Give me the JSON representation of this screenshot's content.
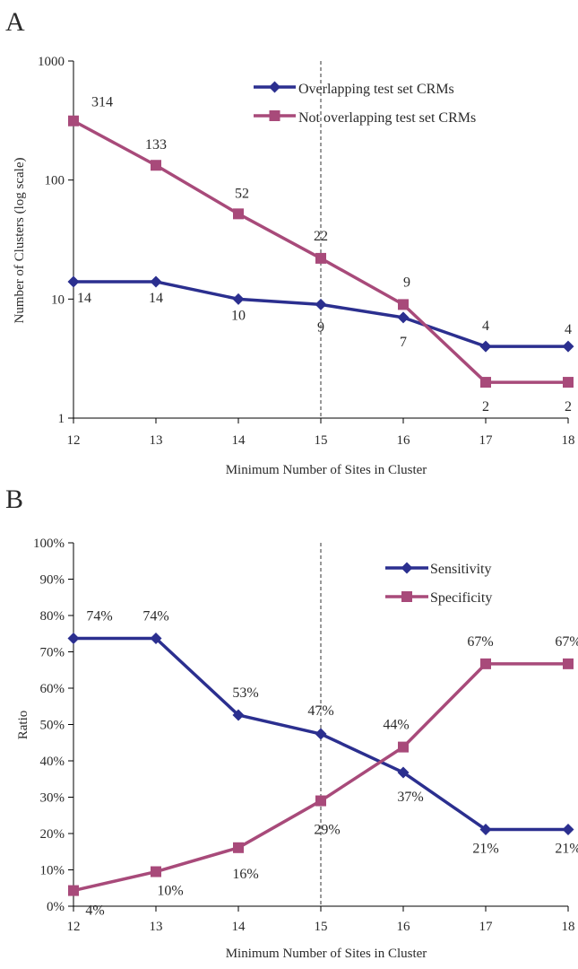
{
  "chart_data": [
    {
      "panel_label": "A",
      "type": "line",
      "xlabel": "Minimum Number of Sites in Cluster",
      "ylabel": "Number of Clusters (log scale)",
      "x": [
        12,
        13,
        14,
        15,
        16,
        17,
        18
      ],
      "x_tick_labels": [
        "12",
        "13",
        "14",
        "15",
        "16",
        "17",
        "18"
      ],
      "y_scale": "log",
      "ylim": [
        1,
        1000
      ],
      "y_tick_labels": [
        "1",
        "10",
        "100",
        "1000"
      ],
      "reference_line_x": 15,
      "legend_position": "top-right",
      "grid": false,
      "series": [
        {
          "name": "Overlapping test set CRMs",
          "color": "#2b2f8f",
          "marker": "diamond",
          "values": [
            14,
            14,
            10,
            9,
            7,
            4,
            4
          ],
          "labels": [
            "14",
            "14",
            "10",
            "9",
            "7",
            "4",
            "4"
          ]
        },
        {
          "name": "Not overlapping test set CRMs",
          "color": "#a84a7a",
          "marker": "square",
          "values": [
            314,
            133,
            52,
            22,
            9,
            2,
            2
          ],
          "labels": [
            "314",
            "133",
            "52",
            "22",
            "9",
            "2",
            "2"
          ]
        }
      ]
    },
    {
      "panel_label": "B",
      "type": "line",
      "xlabel": "Minimum Number of Sites in Cluster",
      "ylabel": "Ratio",
      "x": [
        12,
        13,
        14,
        15,
        16,
        17,
        18
      ],
      "x_tick_labels": [
        "12",
        "13",
        "14",
        "15",
        "16",
        "17",
        "18"
      ],
      "y_scale": "linear",
      "ylim": [
        0,
        1
      ],
      "y_tick_labels": [
        "0%",
        "10%",
        "20%",
        "30%",
        "40%",
        "50%",
        "60%",
        "70%",
        "80%",
        "90%",
        "100%"
      ],
      "reference_line_x": 15,
      "legend_position": "top-right",
      "grid": false,
      "series": [
        {
          "name": "Sensitivity",
          "color": "#2b2f8f",
          "marker": "diamond",
          "values": [
            0.737,
            0.737,
            0.526,
            0.474,
            0.368,
            0.211,
            0.211
          ],
          "labels": [
            "74%",
            "74%",
            "53%",
            "47%",
            "37%",
            "21%",
            "21%"
          ]
        },
        {
          "name": "Specificity",
          "color": "#a84a7a",
          "marker": "square",
          "values": [
            0.043,
            0.095,
            0.161,
            0.29,
            0.438,
            0.667,
            0.667
          ],
          "labels": [
            "4%",
            "10%",
            "16%",
            "29%",
            "44%",
            "67%",
            "67%"
          ]
        }
      ]
    }
  ]
}
